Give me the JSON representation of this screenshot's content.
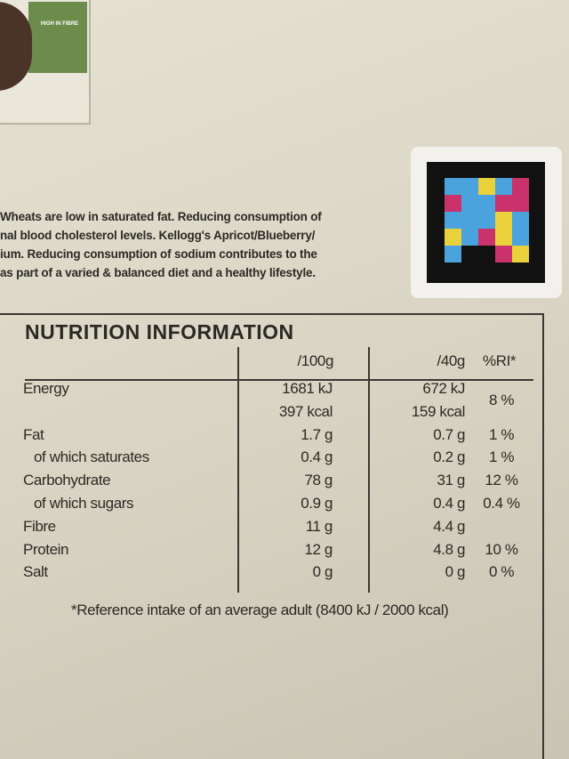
{
  "badge": "HIGH IN FIBRE",
  "intro": [
    "Wheats are low in saturated fat. Reducing consumption of",
    "nal blood cholesterol levels. Kellogg's Apricot/Blueberry/",
    "ium. Reducing consumption of sodium contributes to the",
    "as part of a varied & balanced diet and a healthy lifestyle."
  ],
  "table": {
    "title": "NUTRITION INFORMATION",
    "columns": [
      "/100g",
      "/40g",
      "%RI*"
    ],
    "rows": [
      {
        "label": "Energy",
        "per100g": [
          "1681 kJ",
          "397 kcal"
        ],
        "per40g": [
          "672 kJ",
          "159 kcal"
        ],
        "ri": "8 %"
      },
      {
        "label": "Fat",
        "per100g": [
          "1.7 g"
        ],
        "per40g": [
          "0.7 g"
        ],
        "ri": "1 %"
      },
      {
        "label": "of which saturates",
        "indent": true,
        "per100g": [
          "0.4 g"
        ],
        "per40g": [
          "0.2 g"
        ],
        "ri": "1 %"
      },
      {
        "label": "Carbohydrate",
        "per100g": [
          "78 g"
        ],
        "per40g": [
          "31 g"
        ],
        "ri": "12 %"
      },
      {
        "label": "of which sugars",
        "indent": true,
        "per100g": [
          "0.9 g"
        ],
        "per40g": [
          "0.4 g"
        ],
        "ri": "0.4 %"
      },
      {
        "label": "Fibre",
        "per100g": [
          "11 g"
        ],
        "per40g": [
          "4.4 g"
        ]
      },
      {
        "label": "Protein",
        "per100g": [
          "12 g"
        ],
        "per40g": [
          "4.8 g"
        ],
        "ri": "10 %"
      },
      {
        "label": "Salt",
        "per100g": [
          "0 g"
        ],
        "per40g": [
          "0 g"
        ],
        "ri": "0 %"
      }
    ],
    "footnote": "*Reference intake of an average adult (8400 kJ / 2000 kcal)"
  }
}
